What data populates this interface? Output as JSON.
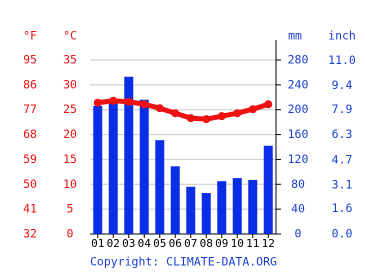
{
  "chart_data": {
    "type": "bar",
    "categories": [
      "01",
      "02",
      "03",
      "04",
      "05",
      "06",
      "07",
      "08",
      "09",
      "10",
      "11",
      "12"
    ],
    "series": [
      {
        "type": "bar",
        "color": "#0a2ee6",
        "axis": "y2",
        "values": [
          206,
          211,
          253,
          216,
          151,
          109,
          76,
          66,
          85,
          90,
          87,
          142
        ]
      },
      {
        "type": "line",
        "color": "#ee1111",
        "values": [
          26.4,
          26.8,
          26.6,
          26.1,
          25.3,
          24.3,
          23.3,
          23.1,
          23.7,
          24.3,
          25.1,
          26.1
        ]
      }
    ],
    "y_label": "°C",
    "ylim": [
      0,
      35
    ],
    "yticks": [
      0,
      5,
      10,
      15,
      20,
      25,
      30,
      35
    ],
    "fahrenheit_axis": {
      "label": "°F",
      "lim": [
        32,
        95
      ],
      "ticks": [
        32,
        41,
        50,
        59,
        68,
        77,
        86,
        95
      ]
    },
    "y2_label": "mm",
    "y2lim": [
      0,
      280
    ],
    "y2ticks": [
      0,
      40,
      80,
      120,
      160,
      200,
      240,
      280
    ],
    "inch_axis": {
      "label": "inch",
      "lim": [
        0,
        11.0236
      ],
      "ticks": [
        {
          "value": 0,
          "label": "0.0"
        },
        1.6,
        3.1,
        4.7,
        6.3,
        7.9,
        9.4,
        {
          "value": 11,
          "label": "11.0"
        }
      ]
    },
    "grid": true,
    "footer": "Copyright: CLIMATE-DATA.ORG"
  }
}
